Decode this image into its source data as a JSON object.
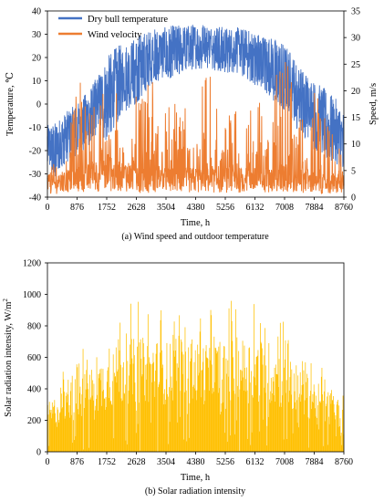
{
  "chart_data": [
    {
      "type": "line",
      "caption": "(a) Wind speed and outdoor temperature",
      "xlabel": "Time, h",
      "ylabel": "Temperature, ℃",
      "y2label": "Speed, m/s",
      "xlim": [
        0,
        8760
      ],
      "ylim": [
        -40,
        40
      ],
      "y2lim": [
        0,
        35
      ],
      "xticks": [
        0,
        876,
        1752,
        2628,
        3504,
        4380,
        5256,
        6132,
        7008,
        7884,
        8760
      ],
      "yticks": [
        -40,
        -30,
        -20,
        -10,
        0,
        10,
        20,
        30,
        40
      ],
      "y2ticks": [
        0,
        5,
        10,
        15,
        20,
        25,
        30,
        35
      ],
      "legend": "top-left",
      "grid": false,
      "series": [
        {
          "name": "Dry bull temperature",
          "axis": "left",
          "color": "#4472c4",
          "x": [
            0,
            219,
            438,
            657,
            876,
            1095,
            1314,
            1533,
            1752,
            1971,
            2190,
            2409,
            2628,
            2847,
            3066,
            3285,
            3504,
            3723,
            3942,
            4161,
            4380,
            4599,
            4818,
            5037,
            5256,
            5475,
            5694,
            5913,
            6132,
            6351,
            6570,
            6789,
            7008,
            7227,
            7446,
            7665,
            7884,
            8103,
            8322,
            8541,
            8760
          ],
          "mean": [
            -17,
            -19,
            -16,
            -12,
            -10,
            -7,
            -4,
            -1,
            2,
            5,
            8,
            11,
            14,
            17,
            19,
            20,
            21,
            22,
            23,
            24,
            24,
            24,
            24,
            24,
            23,
            23,
            23,
            22,
            21,
            19,
            17,
            14,
            10,
            6,
            2,
            -2,
            -6,
            -10,
            -13,
            -15,
            -17
          ],
          "max": [
            -9,
            -8,
            -5,
            -2,
            0,
            4,
            8,
            14,
            20,
            24,
            26,
            27,
            29,
            31,
            32,
            33,
            33,
            34,
            34,
            34,
            35,
            35,
            34,
            34,
            33,
            33,
            33,
            32,
            31,
            30,
            29,
            28,
            26,
            22,
            16,
            14,
            10,
            8,
            5,
            2,
            -3
          ],
          "min": [
            -28,
            -32,
            -27,
            -24,
            -22,
            -20,
            -16,
            -12,
            -16,
            -10,
            -5,
            -2,
            0,
            4,
            8,
            10,
            10,
            12,
            13,
            14,
            15,
            15,
            15,
            14,
            13,
            12,
            12,
            10,
            8,
            6,
            2,
            0,
            -4,
            -8,
            -12,
            -16,
            -20,
            -22,
            -24,
            -26,
            -28
          ]
        },
        {
          "name": "Wind velocity",
          "axis": "right",
          "color": "#ed7d31",
          "x": [
            0,
            219,
            438,
            657,
            876,
            1095,
            1314,
            1533,
            1752,
            1971,
            2190,
            2409,
            2628,
            2847,
            3066,
            3285,
            3504,
            3723,
            3942,
            4161,
            4380,
            4599,
            4818,
            5037,
            5256,
            5475,
            5694,
            5913,
            6132,
            6351,
            6570,
            6789,
            7008,
            7227,
            7446,
            7665,
            7884,
            8103,
            8322,
            8541,
            8760
          ],
          "mean": [
            3,
            3,
            3,
            4,
            4,
            4,
            5,
            5,
            5,
            5,
            5,
            5,
            4,
            4,
            4,
            4,
            4,
            4,
            4,
            4,
            4,
            4,
            4,
            4,
            4,
            4,
            4,
            4,
            4,
            4,
            4,
            4,
            4,
            4,
            4,
            4,
            3,
            3,
            3,
            3,
            3
          ],
          "max": [
            11,
            10,
            12,
            14,
            22,
            25,
            18,
            20,
            20,
            24,
            12,
            17,
            22,
            20,
            24,
            15,
            18,
            20,
            18,
            16,
            20,
            22,
            26,
            17,
            14,
            18,
            20,
            18,
            22,
            18,
            15,
            26,
            33,
            24,
            18,
            14,
            20,
            18,
            13,
            12,
            6
          ],
          "min": [
            0,
            0,
            0,
            0,
            0,
            0,
            0,
            0,
            0,
            0,
            0,
            0,
            0,
            0,
            0,
            0,
            0,
            0,
            0,
            0,
            0,
            0,
            0,
            0,
            0,
            0,
            0,
            0,
            0,
            0,
            0,
            0,
            0,
            0,
            0,
            0,
            0,
            0,
            0,
            0,
            0
          ]
        }
      ]
    },
    {
      "type": "bar",
      "caption": "(b) Solar radiation intensity",
      "xlabel": "Time, h",
      "ylabel": "Solar radiation intensity, W/m",
      "ylabel_superscript": "2",
      "xlim": [
        0,
        8760
      ],
      "ylim": [
        0,
        1200
      ],
      "xticks": [
        0,
        876,
        1752,
        2628,
        3504,
        4380,
        5256,
        6132,
        7008,
        7884,
        8760
      ],
      "yticks": [
        0,
        200,
        400,
        600,
        800,
        1000,
        1200
      ],
      "grid": false,
      "series": [
        {
          "name": "",
          "color": "#ffc000",
          "x": [
            0,
            438,
            876,
            1314,
            1752,
            2190,
            2628,
            3066,
            3504,
            3942,
            4380,
            4818,
            5256,
            5694,
            6132,
            6570,
            7008,
            7446,
            7884,
            8322,
            8760
          ],
          "envelope": [
            420,
            520,
            640,
            700,
            760,
            880,
            1000,
            920,
            900,
            880,
            860,
            900,
            960,
            980,
            990,
            930,
            840,
            700,
            600,
            480,
            420
          ],
          "typical": [
            240,
            300,
            380,
            420,
            480,
            540,
            560,
            560,
            540,
            540,
            540,
            540,
            560,
            560,
            560,
            540,
            480,
            420,
            360,
            300,
            260
          ]
        }
      ]
    }
  ]
}
